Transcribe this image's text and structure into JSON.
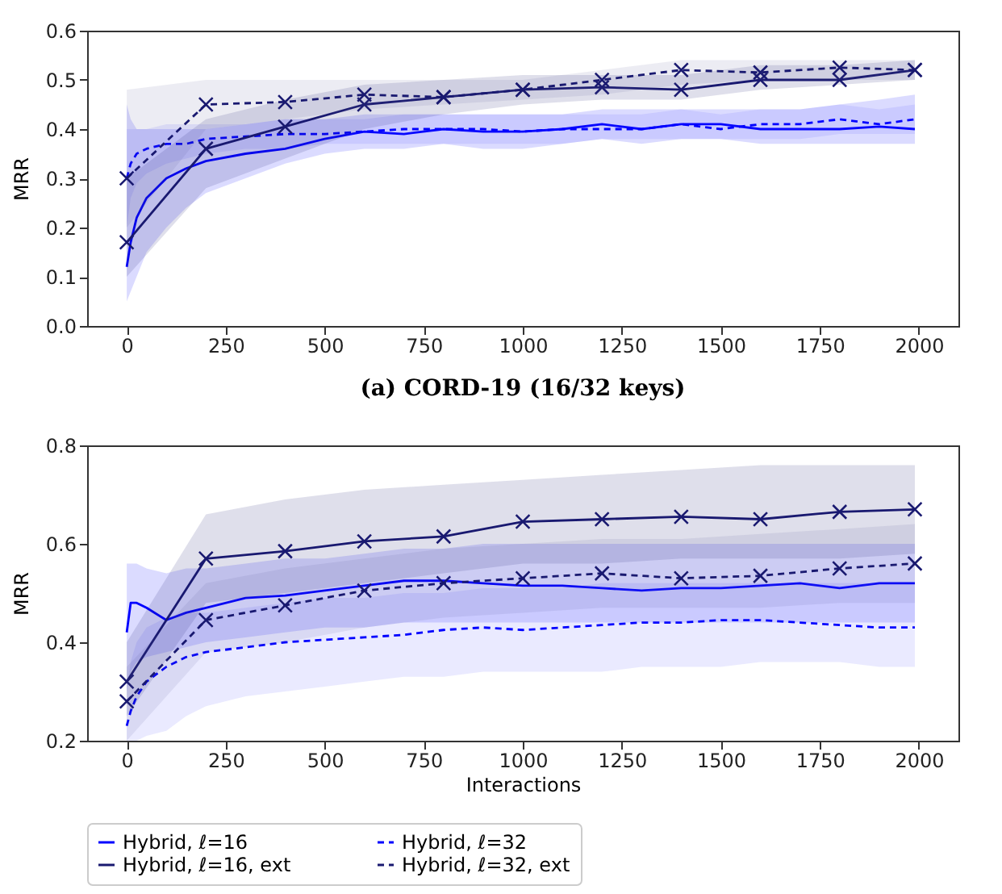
{
  "chart_data": [
    {
      "type": "line",
      "title": "(a) CORD-19 (16/32 keys)",
      "ylabel": "MRR",
      "xlim": [
        -100,
        2100
      ],
      "xticks": [
        0,
        250,
        500,
        750,
        1000,
        1250,
        1500,
        1750,
        2000
      ],
      "ylim": [
        0,
        0.6
      ],
      "yticks": [
        {
          "value": 0,
          "label": "0.0"
        },
        0.1,
        0.2,
        0.3,
        0.4,
        0.5,
        0.6
      ],
      "grid": false,
      "legend": false,
      "series": [
        {
          "color": "#0000ff",
          "line_style": "solid",
          "marker": "none",
          "x": [
            0,
            10,
            25,
            50,
            100,
            150,
            200,
            300,
            400,
            500,
            600,
            700,
            800,
            900,
            1000,
            1100,
            1200,
            1300,
            1400,
            1500,
            1600,
            1700,
            1800,
            1900,
            1990
          ],
          "values": [
            0.12,
            0.17,
            0.22,
            0.26,
            0.3,
            0.32,
            0.335,
            0.35,
            0.36,
            0.38,
            0.395,
            0.39,
            0.4,
            0.395,
            0.395,
            0.4,
            0.41,
            0.4,
            0.41,
            0.41,
            0.4,
            0.4,
            0.4,
            0.405,
            0.4
          ],
          "lower": [
            0.05,
            0.07,
            0.1,
            0.15,
            0.2,
            0.24,
            0.27,
            0.3,
            0.33,
            0.35,
            0.36,
            0.36,
            0.37,
            0.36,
            0.36,
            0.37,
            0.38,
            0.37,
            0.38,
            0.38,
            0.37,
            0.37,
            0.37,
            0.37,
            0.37
          ],
          "upper": [
            0.45,
            0.42,
            0.4,
            0.4,
            0.4,
            0.4,
            0.4,
            0.41,
            0.42,
            0.42,
            0.43,
            0.43,
            0.43,
            0.43,
            0.43,
            0.43,
            0.44,
            0.44,
            0.44,
            0.44,
            0.44,
            0.44,
            0.45,
            0.46,
            0.47
          ]
        },
        {
          "color": "#0000ff",
          "line_style": "dashed",
          "marker": "none",
          "x": [
            0,
            10,
            25,
            50,
            100,
            150,
            200,
            300,
            400,
            500,
            600,
            700,
            800,
            900,
            1000,
            1100,
            1200,
            1300,
            1400,
            1500,
            1600,
            1700,
            1800,
            1900,
            1990
          ],
          "values": [
            0.3,
            0.33,
            0.35,
            0.36,
            0.37,
            0.37,
            0.38,
            0.385,
            0.39,
            0.39,
            0.395,
            0.4,
            0.4,
            0.4,
            0.395,
            0.4,
            0.4,
            0.4,
            0.41,
            0.4,
            0.41,
            0.41,
            0.42,
            0.41,
            0.42
          ],
          "lower": [
            0.2,
            0.26,
            0.29,
            0.31,
            0.33,
            0.34,
            0.35,
            0.36,
            0.36,
            0.37,
            0.37,
            0.37,
            0.37,
            0.37,
            0.37,
            0.37,
            0.38,
            0.38,
            0.38,
            0.38,
            0.38,
            0.38,
            0.39,
            0.39,
            0.39
          ],
          "upper": [
            0.4,
            0.4,
            0.4,
            0.4,
            0.41,
            0.41,
            0.41,
            0.41,
            0.42,
            0.42,
            0.42,
            0.43,
            0.43,
            0.43,
            0.43,
            0.43,
            0.43,
            0.43,
            0.44,
            0.43,
            0.44,
            0.44,
            0.45,
            0.44,
            0.45
          ]
        },
        {
          "color": "#191970",
          "line_style": "solid",
          "marker": "cross",
          "x": [
            0,
            200,
            400,
            600,
            800,
            1000,
            1200,
            1400,
            1600,
            1800,
            1990
          ],
          "values": [
            0.17,
            0.36,
            0.405,
            0.45,
            0.465,
            0.48,
            0.485,
            0.48,
            0.5,
            0.5,
            0.52
          ],
          "lower": [
            0.1,
            0.28,
            0.34,
            0.4,
            0.43,
            0.45,
            0.46,
            0.46,
            0.48,
            0.49,
            0.5
          ],
          "upper": [
            0.3,
            0.42,
            0.46,
            0.49,
            0.5,
            0.51,
            0.51,
            0.51,
            0.53,
            0.53,
            0.54
          ]
        },
        {
          "color": "#191970",
          "line_style": "dashed",
          "marker": "cross",
          "x": [
            0,
            200,
            400,
            600,
            800,
            1000,
            1200,
            1400,
            1600,
            1800,
            1990
          ],
          "values": [
            0.3,
            0.45,
            0.455,
            0.47,
            0.465,
            0.48,
            0.5,
            0.52,
            0.515,
            0.525,
            0.52
          ],
          "lower": [
            0.2,
            0.4,
            0.42,
            0.44,
            0.45,
            0.46,
            0.47,
            0.49,
            0.5,
            0.5,
            0.5
          ],
          "upper": [
            0.48,
            0.5,
            0.5,
            0.5,
            0.5,
            0.5,
            0.52,
            0.54,
            0.54,
            0.54,
            0.54
          ]
        }
      ]
    },
    {
      "type": "line",
      "xlabel": "Interactions",
      "ylabel": "MRR",
      "xlim": [
        -100,
        2100
      ],
      "xticks": [
        0,
        250,
        500,
        750,
        1000,
        1250,
        1500,
        1750,
        2000
      ],
      "ylim": [
        0.2,
        0.8
      ],
      "yticks": [
        0.2,
        0.4,
        0.6,
        0.8
      ],
      "grid": false,
      "legend": "bottom",
      "series": [
        {
          "name": "Hybrid, ℓ=16",
          "color": "#0000ff",
          "line_style": "solid",
          "marker": "none",
          "x": [
            0,
            10,
            25,
            50,
            100,
            150,
            200,
            300,
            400,
            500,
            600,
            700,
            800,
            900,
            1000,
            1100,
            1200,
            1300,
            1400,
            1500,
            1600,
            1700,
            1800,
            1900,
            1990
          ],
          "values": [
            0.42,
            0.48,
            0.48,
            0.47,
            0.445,
            0.46,
            0.47,
            0.49,
            0.495,
            0.505,
            0.515,
            0.525,
            0.525,
            0.52,
            0.515,
            0.515,
            0.51,
            0.505,
            0.51,
            0.51,
            0.515,
            0.52,
            0.51,
            0.52,
            0.52
          ],
          "lower": [
            0.3,
            0.34,
            0.36,
            0.37,
            0.38,
            0.39,
            0.4,
            0.41,
            0.42,
            0.43,
            0.43,
            0.44,
            0.44,
            0.44,
            0.44,
            0.44,
            0.44,
            0.44,
            0.44,
            0.44,
            0.44,
            0.44,
            0.44,
            0.44,
            0.44
          ],
          "upper": [
            0.56,
            0.56,
            0.56,
            0.55,
            0.54,
            0.55,
            0.55,
            0.56,
            0.57,
            0.57,
            0.58,
            0.59,
            0.59,
            0.6,
            0.6,
            0.6,
            0.6,
            0.6,
            0.6,
            0.6,
            0.6,
            0.6,
            0.6,
            0.6,
            0.6
          ]
        },
        {
          "name": "Hybrid, ℓ=32",
          "color": "#0000ff",
          "line_style": "dashed",
          "marker": "none",
          "x": [
            0,
            10,
            25,
            50,
            100,
            150,
            200,
            300,
            400,
            500,
            600,
            700,
            800,
            900,
            1000,
            1100,
            1200,
            1300,
            1400,
            1500,
            1600,
            1700,
            1800,
            1900,
            1990
          ],
          "values": [
            0.23,
            0.26,
            0.29,
            0.32,
            0.35,
            0.37,
            0.38,
            0.39,
            0.4,
            0.405,
            0.41,
            0.415,
            0.425,
            0.43,
            0.425,
            0.43,
            0.435,
            0.44,
            0.44,
            0.445,
            0.445,
            0.44,
            0.435,
            0.43,
            0.43
          ],
          "lower": [
            0.2,
            0.2,
            0.2,
            0.21,
            0.22,
            0.25,
            0.27,
            0.29,
            0.3,
            0.31,
            0.32,
            0.33,
            0.33,
            0.34,
            0.34,
            0.34,
            0.34,
            0.35,
            0.35,
            0.35,
            0.36,
            0.36,
            0.36,
            0.35,
            0.35
          ],
          "upper": [
            0.3,
            0.36,
            0.4,
            0.43,
            0.45,
            0.46,
            0.46,
            0.47,
            0.48,
            0.49,
            0.49,
            0.5,
            0.5,
            0.51,
            0.51,
            0.51,
            0.52,
            0.52,
            0.52,
            0.52,
            0.52,
            0.52,
            0.52,
            0.52,
            0.52
          ]
        },
        {
          "name": "Hybrid, ℓ=16, ext",
          "color": "#191970",
          "line_style": "solid",
          "marker": "cross",
          "x": [
            0,
            200,
            400,
            600,
            800,
            1000,
            1200,
            1400,
            1600,
            1800,
            1990
          ],
          "values": [
            0.32,
            0.57,
            0.585,
            0.605,
            0.615,
            0.645,
            0.65,
            0.655,
            0.65,
            0.665,
            0.67
          ],
          "lower": [
            0.25,
            0.48,
            0.5,
            0.52,
            0.54,
            0.56,
            0.56,
            0.57,
            0.57,
            0.57,
            0.58
          ],
          "upper": [
            0.4,
            0.66,
            0.69,
            0.71,
            0.72,
            0.73,
            0.74,
            0.75,
            0.76,
            0.76,
            0.76
          ]
        },
        {
          "name": "Hybrid, ℓ=32, ext",
          "color": "#191970",
          "line_style": "dashed",
          "marker": "cross",
          "x": [
            0,
            200,
            400,
            600,
            800,
            1000,
            1200,
            1400,
            1600,
            1800,
            1990
          ],
          "values": [
            0.28,
            0.445,
            0.475,
            0.505,
            0.52,
            0.53,
            0.54,
            0.53,
            0.535,
            0.55,
            0.56
          ],
          "lower": [
            0.2,
            0.38,
            0.4,
            0.43,
            0.45,
            0.46,
            0.47,
            0.47,
            0.47,
            0.48,
            0.48
          ],
          "upper": [
            0.35,
            0.52,
            0.55,
            0.57,
            0.59,
            0.6,
            0.61,
            0.61,
            0.62,
            0.63,
            0.64
          ]
        }
      ]
    }
  ]
}
